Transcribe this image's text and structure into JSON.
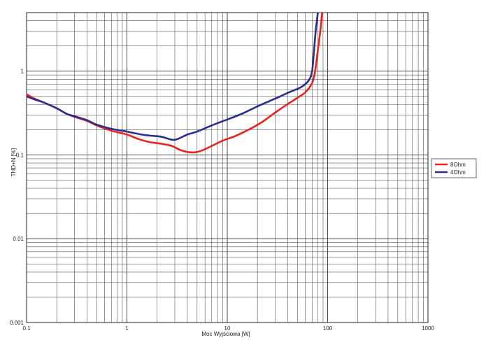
{
  "chart_data": {
    "type": "line",
    "title": "",
    "xlabel": "Moc Wyjściowa [W]",
    "ylabel": "THD+N [%]",
    "x_scale": "log",
    "y_scale": "log",
    "xlim": [
      0.1,
      1000
    ],
    "ylim": [
      0.001,
      5
    ],
    "x_ticks": [
      "0.1",
      "1",
      "10",
      "100",
      "1000"
    ],
    "y_ticks": [
      "0.001",
      "0.01",
      "0.1",
      "1"
    ],
    "grid": true,
    "legend_position": "right",
    "series": [
      {
        "name": "8Ohm",
        "color": "#e8231f",
        "points": [
          [
            0.1,
            0.53
          ],
          [
            0.12,
            0.47
          ],
          [
            0.15,
            0.42
          ],
          [
            0.2,
            0.36
          ],
          [
            0.25,
            0.31
          ],
          [
            0.3,
            0.285
          ],
          [
            0.4,
            0.255
          ],
          [
            0.5,
            0.225
          ],
          [
            0.7,
            0.195
          ],
          [
            1.0,
            0.175
          ],
          [
            1.3,
            0.155
          ],
          [
            1.7,
            0.142
          ],
          [
            2.2,
            0.136
          ],
          [
            2.8,
            0.128
          ],
          [
            3.5,
            0.113
          ],
          [
            4.5,
            0.107
          ],
          [
            5.5,
            0.112
          ],
          [
            7.0,
            0.128
          ],
          [
            9.0,
            0.148
          ],
          [
            12.0,
            0.168
          ],
          [
            16.0,
            0.198
          ],
          [
            22.0,
            0.245
          ],
          [
            30.0,
            0.32
          ],
          [
            40.0,
            0.405
          ],
          [
            50.0,
            0.48
          ],
          [
            60.0,
            0.56
          ],
          [
            70.0,
            0.72
          ],
          [
            75.0,
            1.0
          ],
          [
            80.0,
            1.8
          ],
          [
            85.0,
            3.2
          ],
          [
            88.0,
            5.0
          ]
        ]
      },
      {
        "name": "4Ohm",
        "color": "#2b2e8c",
        "points": [
          [
            0.1,
            0.5
          ],
          [
            0.12,
            0.46
          ],
          [
            0.15,
            0.42
          ],
          [
            0.2,
            0.36
          ],
          [
            0.25,
            0.31
          ],
          [
            0.3,
            0.29
          ],
          [
            0.4,
            0.26
          ],
          [
            0.5,
            0.23
          ],
          [
            0.7,
            0.205
          ],
          [
            1.0,
            0.19
          ],
          [
            1.3,
            0.178
          ],
          [
            1.7,
            0.17
          ],
          [
            2.2,
            0.165
          ],
          [
            2.8,
            0.152
          ],
          [
            3.2,
            0.155
          ],
          [
            4.0,
            0.175
          ],
          [
            5.0,
            0.19
          ],
          [
            7.0,
            0.225
          ],
          [
            10.0,
            0.265
          ],
          [
            14.0,
            0.31
          ],
          [
            20.0,
            0.38
          ],
          [
            30.0,
            0.47
          ],
          [
            40.0,
            0.55
          ],
          [
            55.0,
            0.65
          ],
          [
            65.0,
            0.78
          ],
          [
            70.0,
            1.0
          ],
          [
            73.0,
            1.7
          ],
          [
            76.0,
            3.0
          ],
          [
            80.0,
            5.0
          ]
        ]
      }
    ]
  }
}
